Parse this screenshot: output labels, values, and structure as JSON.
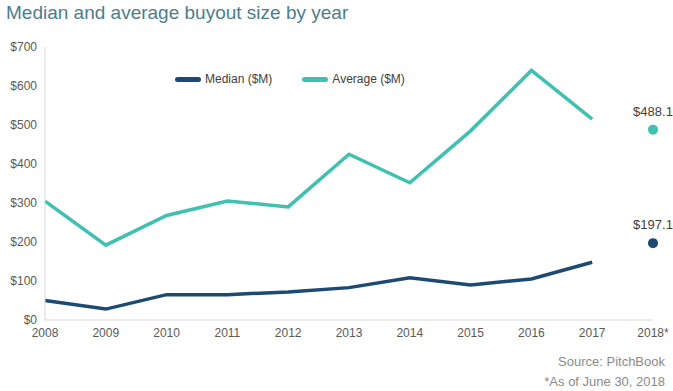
{
  "chart_data": {
    "type": "line",
    "title": "Median and average buyout size by year",
    "source": "Source: PitchBook",
    "note": "*As of June 30, 2018",
    "categories": [
      "2008",
      "2009",
      "2010",
      "2011",
      "2012",
      "2013",
      "2014",
      "2015",
      "2016",
      "2017",
      "2018*"
    ],
    "ylim": [
      0,
      700
    ],
    "yticks": [
      {
        "value": 0,
        "label": "$0"
      },
      {
        "value": 100,
        "label": "$100"
      },
      {
        "value": 200,
        "label": "$200"
      },
      {
        "value": 300,
        "label": "$300"
      },
      {
        "value": 400,
        "label": "$400"
      },
      {
        "value": 500,
        "label": "$500"
      },
      {
        "value": 600,
        "label": "$600"
      },
      {
        "value": 700,
        "label": "$700"
      }
    ],
    "grid": false,
    "legend": "top",
    "series": [
      {
        "name": "Median ($M)",
        "color": "#1c4a72",
        "type": "line",
        "line_style": "solid",
        "values": [
          50,
          28,
          65,
          65,
          72,
          83,
          108,
          90,
          105,
          148,
          null
        ]
      },
      {
        "name": "Average ($M)",
        "color": "#3fc0b0",
        "type": "line",
        "line_style": "solid",
        "values": [
          305,
          192,
          268,
          305,
          290,
          425,
          352,
          485,
          640,
          515,
          null
        ]
      },
      {
        "color": "#3fc0b0",
        "type": "scatter",
        "marker": "circle",
        "data_labels": true,
        "values": [
          null,
          null,
          null,
          null,
          null,
          null,
          null,
          null,
          null,
          null,
          488.1
        ],
        "value_labels": [
          null,
          null,
          null,
          null,
          null,
          null,
          null,
          null,
          null,
          null,
          "$488.1"
        ]
      },
      {
        "color": "#1c4a72",
        "type": "scatter",
        "marker": "circle",
        "data_labels": true,
        "values": [
          null,
          null,
          null,
          null,
          null,
          null,
          null,
          null,
          null,
          null,
          197.1
        ],
        "value_labels": [
          null,
          null,
          null,
          null,
          null,
          null,
          null,
          null,
          null,
          null,
          "$197.1"
        ]
      }
    ]
  }
}
